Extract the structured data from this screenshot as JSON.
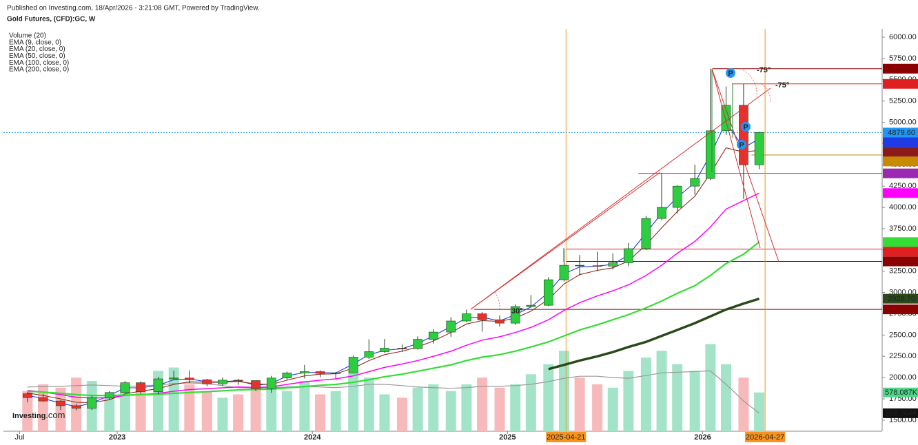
{
  "chart_data": {
    "type": "candlestick",
    "title": "Gold Futures, (CFD):GC, W",
    "subtitle": "Published on Investing.com, 18/Apr/2026 - 3:21:08 GMT, Powered by TradingView.",
    "watermark": [
      "Investing",
      ".com"
    ],
    "xlim": [
      2022.417,
      2026.92
    ],
    "xticks": [
      {
        "value": 2022.5,
        "label": "Jul"
      },
      2023,
      2024,
      2025,
      2026
    ],
    "ylim": [
      1370,
      6097
    ],
    "yticks": [
      {
        "value": 1500,
        "label": "1500.00"
      },
      {
        "value": 1750,
        "label": "1750.00"
      },
      {
        "value": 2000,
        "label": "2000.00"
      },
      {
        "value": 2250,
        "label": "2250.00"
      },
      {
        "value": 2500,
        "label": "2500.00"
      },
      {
        "value": 2750,
        "label": "2750.00"
      },
      {
        "value": 3000,
        "label": "3000.00"
      },
      {
        "value": 3250,
        "label": "3250.00"
      },
      {
        "value": 3500,
        "label": "3500.00"
      },
      {
        "value": 3750,
        "label": "3750.00"
      },
      {
        "value": 4000,
        "label": "4000.00"
      },
      {
        "value": 4250,
        "label": "4250.00"
      },
      {
        "value": 4500,
        "label": "4500.00"
      },
      {
        "value": 4750,
        "label": "4750.00"
      },
      {
        "value": 5000,
        "label": "5000.00"
      },
      {
        "value": 5250,
        "label": "5250.00"
      },
      {
        "value": 5500,
        "label": "5500.00"
      },
      {
        "value": 5750,
        "label": "5750.00"
      },
      {
        "value": 6000,
        "label": "6000.00"
      }
    ],
    "up_color": "#2ecc40",
    "down_color": "#e8312f",
    "x": [
      2022.54,
      2022.62,
      2022.71,
      2022.79,
      2022.87,
      2022.96,
      2023.04,
      2023.12,
      2023.21,
      2023.29,
      2023.37,
      2023.46,
      2023.54,
      2023.62,
      2023.71,
      2023.79,
      2023.87,
      2023.96,
      2024.04,
      2024.12,
      2024.21,
      2024.29,
      2024.37,
      2024.46,
      2024.54,
      2024.62,
      2024.71,
      2024.79,
      2024.87,
      2024.96,
      2025.04,
      2025.12,
      2025.21,
      2025.29,
      2025.37,
      2025.46,
      2025.54,
      2025.62,
      2025.71,
      2025.79,
      2025.87,
      2025.96,
      2026.04,
      2026.12,
      2026.21,
      2026.29
    ],
    "open": [
      1810,
      1765,
      1725,
      1670,
      1640,
      1760,
      1825,
      1940,
      1835,
      1985,
      1995,
      1975,
      1925,
      1970,
      1965,
      1870,
      1995,
      2055,
      2070,
      2050,
      2055,
      2240,
      2305,
      2345,
      2340,
      2450,
      2535,
      2665,
      2750,
      2680,
      2640,
      2835,
      2850,
      3150,
      3320,
      3315,
      3310,
      3350,
      3515,
      3870,
      4000,
      4250,
      4340,
      4900,
      5200,
      4500
    ],
    "high": [
      1830,
      1810,
      1735,
      1690,
      1790,
      1840,
      1960,
      1955,
      2010,
      2080,
      2085,
      1985,
      2000,
      1985,
      1965,
      2020,
      2070,
      2150,
      2085,
      2065,
      2260,
      2450,
      2455,
      2390,
      2485,
      2570,
      2710,
      2800,
      2770,
      2730,
      2860,
      2970,
      3180,
      3510,
      3440,
      3480,
      3460,
      3580,
      3900,
      4400,
      4260,
      4500,
      5630,
      5420,
      5450,
      4890
    ],
    "low": [
      1710,
      1715,
      1620,
      1615,
      1620,
      1745,
      1820,
      1810,
      1805,
      1970,
      1935,
      1900,
      1905,
      1915,
      1845,
      1820,
      1975,
      1990,
      2005,
      1990,
      2050,
      2220,
      2290,
      2300,
      2330,
      2400,
      2480,
      2650,
      2540,
      2600,
      2620,
      2830,
      2840,
      3130,
      3200,
      3250,
      3270,
      3310,
      3500,
      3850,
      3930,
      4150,
      4320,
      4850,
      4100,
      4450
    ],
    "close": [
      1765,
      1725,
      1670,
      1640,
      1760,
      1825,
      1940,
      1835,
      1985,
      1995,
      1975,
      1925,
      1970,
      1965,
      1870,
      1995,
      2055,
      2070,
      2050,
      2055,
      2240,
      2305,
      2345,
      2340,
      2450,
      2535,
      2665,
      2750,
      2680,
      2640,
      2835,
      2850,
      3150,
      3320,
      3315,
      3310,
      3350,
      3515,
      3870,
      4000,
      4250,
      4340,
      4900,
      5200,
      4500,
      4880
    ],
    "series": [
      {
        "name": "EMA (9, close, 0)",
        "color": "#1e3ce6",
        "values": [
          1790,
          1755,
          1700,
          1660,
          1700,
          1790,
          1880,
          1880,
          1910,
          1975,
          1985,
          1950,
          1950,
          1965,
          1910,
          1930,
          2020,
          2060,
          2060,
          2055,
          2160,
          2270,
          2320,
          2340,
          2400,
          2490,
          2600,
          2700,
          2710,
          2665,
          2740,
          2830,
          3000,
          3220,
          3300,
          3310,
          3330,
          3440,
          3700,
          3930,
          4120,
          4290,
          4620,
          5000,
          4700,
          4807.08
        ]
      },
      {
        "name": "EMA (20, close, 0)",
        "color": "#8b2a1a",
        "values": [
          1820,
          1790,
          1750,
          1710,
          1705,
          1740,
          1810,
          1840,
          1870,
          1920,
          1950,
          1945,
          1945,
          1955,
          1925,
          1920,
          1970,
          2020,
          2040,
          2045,
          2110,
          2200,
          2270,
          2310,
          2360,
          2430,
          2530,
          2630,
          2670,
          2660,
          2700,
          2780,
          2920,
          3100,
          3210,
          3260,
          3290,
          3370,
          3560,
          3760,
          3950,
          4130,
          4400,
          4700,
          4650,
          4671.41
        ]
      },
      {
        "name": "EMA (50, close, 0)",
        "color": "#ff00ff",
        "values": [
          1850,
          1830,
          1800,
          1770,
          1760,
          1765,
          1790,
          1800,
          1815,
          1840,
          1860,
          1870,
          1880,
          1890,
          1885,
          1890,
          1920,
          1950,
          1970,
          1985,
          2020,
          2070,
          2120,
          2160,
          2200,
          2250,
          2310,
          2380,
          2440,
          2480,
          2530,
          2590,
          2680,
          2790,
          2880,
          2960,
          3020,
          3090,
          3200,
          3320,
          3460,
          3600,
          3770,
          3980,
          4080,
          4168.39
        ]
      },
      {
        "name": "EMA (100, close, 0)",
        "color": "#33dd33",
        "values": [
          1840,
          1830,
          1815,
          1800,
          1790,
          1790,
          1795,
          1800,
          1805,
          1815,
          1825,
          1835,
          1845,
          1855,
          1860,
          1865,
          1880,
          1895,
          1910,
          1920,
          1945,
          1975,
          2010,
          2040,
          2075,
          2110,
          2150,
          2200,
          2240,
          2270,
          2310,
          2360,
          2420,
          2490,
          2560,
          2620,
          2680,
          2740,
          2820,
          2900,
          2990,
          3080,
          3200,
          3340,
          3450,
          3592.65
        ]
      },
      {
        "name": "EMA (200, close, 0)",
        "color": "#2a4a1a",
        "values": [
          null,
          null,
          null,
          null,
          null,
          null,
          null,
          null,
          null,
          null,
          null,
          null,
          null,
          null,
          null,
          null,
          null,
          null,
          null,
          null,
          null,
          null,
          null,
          null,
          null,
          null,
          null,
          null,
          null,
          null,
          null,
          null,
          2100,
          2150,
          2200,
          2250,
          2300,
          2360,
          2420,
          2490,
          2560,
          2640,
          2720,
          2800,
          2870,
          2926.7
        ]
      }
    ],
    "volume": {
      "name": "Volume (20)",
      "up_color": "#a3e4c8",
      "down_color": "#f7b9b9",
      "label_color": "#4cd98a",
      "lim": [
        0,
        1500
      ],
      "values": [
        600,
        700,
        650,
        800,
        750,
        500,
        700,
        650,
        900,
        950,
        700,
        600,
        500,
        550,
        650,
        700,
        600,
        750,
        550,
        600,
        900,
        800,
        550,
        500,
        650,
        700,
        600,
        700,
        800,
        650,
        700,
        850,
        1000,
        1200,
        800,
        700,
        650,
        900,
        1100,
        1200,
        1000,
        900,
        1300,
        1000,
        800,
        578.087
      ],
      "value_labels": [
        null,
        null,
        null,
        null,
        null,
        null,
        null,
        null,
        null,
        null,
        null,
        null,
        null,
        null,
        null,
        null,
        null,
        null,
        null,
        null,
        null,
        null,
        null,
        null,
        null,
        null,
        null,
        null,
        null,
        null,
        null,
        null,
        null,
        null,
        null,
        null,
        null,
        null,
        null,
        null,
        null,
        null,
        null,
        null,
        null,
        "578.087K"
      ]
    },
    "volume_ma": {
      "color": "#999999",
      "label_color": "#111111",
      "values": [
        660,
        665,
        670,
        680,
        690,
        680,
        670,
        675,
        690,
        710,
        720,
        710,
        680,
        650,
        640,
        650,
        660,
        670,
        660,
        650,
        670,
        700,
        700,
        680,
        660,
        650,
        640,
        650,
        670,
        670,
        680,
        700,
        740,
        790,
        820,
        820,
        800,
        790,
        830,
        870,
        880,
        890,
        900,
        700,
        450,
        268.364
      ],
      "value_labels": [
        null,
        null,
        null,
        null,
        null,
        null,
        null,
        null,
        null,
        null,
        null,
        null,
        null,
        null,
        null,
        null,
        null,
        null,
        null,
        null,
        null,
        null,
        null,
        null,
        null,
        null,
        null,
        null,
        null,
        null,
        null,
        null,
        null,
        null,
        null,
        null,
        null,
        null,
        null,
        null,
        null,
        null,
        null,
        null,
        null,
        "268.364K"
      ]
    },
    "price_labels": [
      {
        "value": 5629.69,
        "color": "#8b0000",
        "line": "solid",
        "start": 2026.05
      },
      {
        "value": 5451.54,
        "color": "#e02020",
        "line": "solid",
        "start": 2026.15
      },
      {
        "value": 4879.6,
        "label": "4879.60",
        "color": "#2196f3",
        "line": "dotted",
        "start": 2022.417
      },
      {
        "value": 4807.08,
        "color": "#1e3ce6"
      },
      {
        "value": 4671.41,
        "color": "#8b1a1a"
      },
      {
        "value": 4616.21,
        "color": "#c98a00",
        "line": "solid",
        "start": 2026.25
      },
      {
        "value": 4399.86,
        "color": "#9c27b0",
        "line": "solid",
        "start": 2025.67
      },
      {
        "value": 4168.39,
        "color": "#ff00ff"
      },
      {
        "value": 3592.65,
        "color": "#33dd33"
      },
      {
        "value": 3510.39,
        "color": "#e02020",
        "line": "solid",
        "start": 2025.3
      },
      {
        "value": 3364.96,
        "color": "#8b0000",
        "line": "solid",
        "start": 2025.3
      },
      {
        "value": 2926.7,
        "label": "2926.70",
        "color": "#2a4a1a"
      },
      {
        "value": 2801.66,
        "color": "#8b0000",
        "line": "solid",
        "start": 2024.83
      }
    ],
    "date_markers": [
      {
        "value": 2025.3,
        "label": "2025-04-21"
      },
      {
        "value": 2026.32,
        "label": "2026-04-27"
      }
    ],
    "marker_color": "#f7931e",
    "annotations": [
      "-75°",
      "-75°",
      "30°",
      "P",
      "P",
      "P"
    ]
  }
}
